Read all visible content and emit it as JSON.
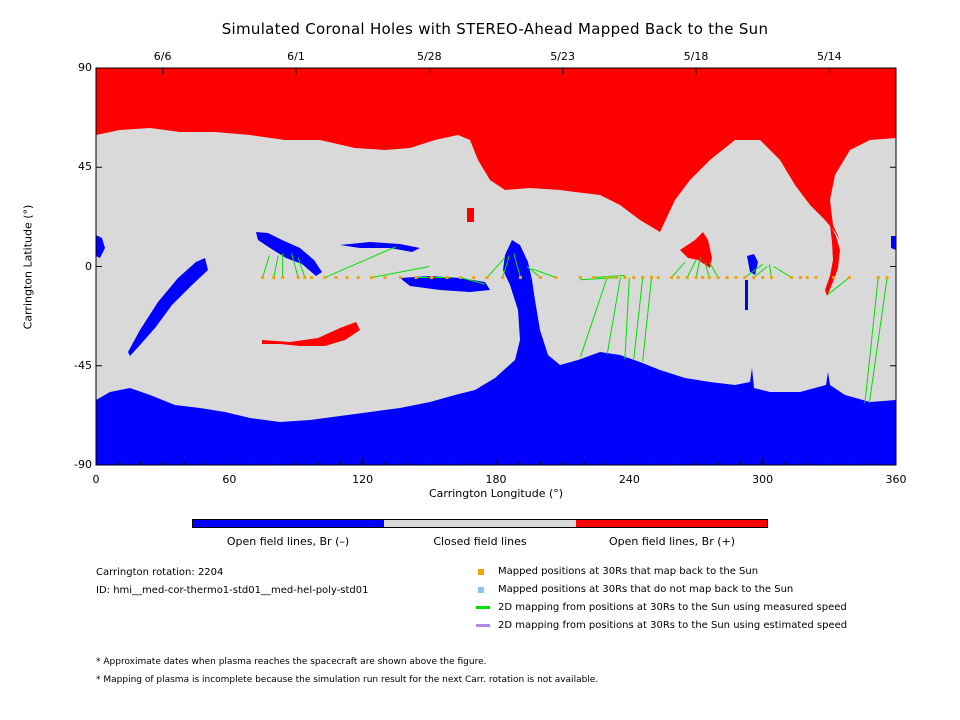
{
  "title": "Simulated Coronal Holes with STEREO-Ahead Mapped Back to the Sun",
  "chart_data": {
    "type": "map",
    "xlabel": "Carrington Longitude (°)",
    "ylabel": "Carrington Latitude (°)",
    "xlim": [
      0,
      360
    ],
    "ylim": [
      -90,
      90
    ],
    "x_ticks": [
      "0",
      "60",
      "120",
      "180",
      "240",
      "300",
      "360"
    ],
    "y_ticks": [
      "90",
      "45",
      "0",
      "-45",
      "-90"
    ],
    "top_dates": [
      {
        "label": "6/6",
        "lon": 30
      },
      {
        "label": "6/1",
        "lon": 90
      },
      {
        "label": "5/28",
        "lon": 150
      },
      {
        "label": "5/23",
        "lon": 210
      },
      {
        "label": "5/18",
        "lon": 270
      },
      {
        "label": "5/14",
        "lon": 330
      }
    ],
    "colors": {
      "open_negative": "#0000ff",
      "closed": "#d9d9d9",
      "open_positive": "#ff0000",
      "mapped_point": "#f0a400",
      "not_mapped_point": "#88c8f0",
      "measured_line": "#00e000",
      "estimated_line": "#b488e0"
    },
    "colorbar": [
      "Open field lines, Br (–)",
      "Closed field lines",
      "Open field lines, Br (+)"
    ],
    "mapped_points": [
      {
        "lon": 75,
        "lat": -5
      },
      {
        "lon": 80,
        "lat": -5
      },
      {
        "lon": 84,
        "lat": -5
      },
      {
        "lon": 91,
        "lat": -5
      },
      {
        "lon": 94,
        "lat": -5
      },
      {
        "lon": 97,
        "lat": -5
      },
      {
        "lon": 103,
        "lat": -5
      },
      {
        "lon": 108,
        "lat": -5
      },
      {
        "lon": 113,
        "lat": -5
      },
      {
        "lon": 118,
        "lat": -5
      },
      {
        "lon": 124,
        "lat": -5
      },
      {
        "lon": 130,
        "lat": -5
      },
      {
        "lon": 137,
        "lat": -5
      },
      {
        "lon": 144,
        "lat": -5
      },
      {
        "lon": 151,
        "lat": -5
      },
      {
        "lon": 158,
        "lat": -5
      },
      {
        "lon": 164,
        "lat": -5
      },
      {
        "lon": 170,
        "lat": -5
      },
      {
        "lon": 176,
        "lat": -5
      },
      {
        "lon": 183,
        "lat": -5
      },
      {
        "lon": 191,
        "lat": -5
      },
      {
        "lon": 200,
        "lat": -5
      },
      {
        "lon": 207,
        "lat": -5
      },
      {
        "lon": 218,
        "lat": -5
      },
      {
        "lon": 224,
        "lat": -5
      },
      {
        "lon": 230,
        "lat": -5
      },
      {
        "lon": 234,
        "lat": -5
      },
      {
        "lon": 238,
        "lat": -5
      },
      {
        "lon": 242,
        "lat": -5
      },
      {
        "lon": 246,
        "lat": -5
      },
      {
        "lon": 250,
        "lat": -5
      },
      {
        "lon": 253,
        "lat": -5
      },
      {
        "lon": 259,
        "lat": -5
      },
      {
        "lon": 262,
        "lat": -5
      },
      {
        "lon": 266,
        "lat": -5
      },
      {
        "lon": 270,
        "lat": -5
      },
      {
        "lon": 273,
        "lat": -5
      },
      {
        "lon": 276,
        "lat": -5
      },
      {
        "lon": 280,
        "lat": -5
      },
      {
        "lon": 284,
        "lat": -5
      },
      {
        "lon": 288,
        "lat": -5
      },
      {
        "lon": 292,
        "lat": -5
      },
      {
        "lon": 296,
        "lat": -5
      },
      {
        "lon": 300,
        "lat": -5
      },
      {
        "lon": 304,
        "lat": -5
      },
      {
        "lon": 313,
        "lat": -5
      },
      {
        "lon": 317,
        "lat": -5
      },
      {
        "lon": 320,
        "lat": -5
      },
      {
        "lon": 324,
        "lat": -5
      },
      {
        "lon": 332,
        "lat": -5
      },
      {
        "lon": 339,
        "lat": -5
      },
      {
        "lon": 352,
        "lat": -5
      },
      {
        "lon": 356,
        "lat": -5
      }
    ],
    "measured_lines": [
      [
        75,
        -5,
        78,
        5
      ],
      [
        80,
        -5,
        82,
        5
      ],
      [
        84,
        -5,
        84,
        6
      ],
      [
        91,
        -5,
        88,
        6
      ],
      [
        94,
        -5,
        91,
        4
      ],
      [
        103,
        -5,
        135,
        9
      ],
      [
        124,
        -5,
        150,
        0
      ],
      [
        144,
        -5,
        160,
        -5
      ],
      [
        164,
        -5,
        175,
        -8
      ],
      [
        176,
        -5,
        184,
        4
      ],
      [
        183,
        -5,
        186,
        5
      ],
      [
        191,
        -5,
        188,
        6
      ],
      [
        200,
        -5,
        194,
        0
      ],
      [
        207,
        -5,
        196,
        -1
      ],
      [
        218,
        -6,
        235,
        -5
      ],
      [
        224,
        -5,
        238,
        -4
      ],
      [
        218,
        -41,
        230,
        -5
      ],
      [
        230,
        -40,
        236,
        -5
      ],
      [
        238,
        -42,
        240,
        -5
      ],
      [
        242,
        -42,
        246,
        -5
      ],
      [
        246,
        -43,
        250,
        -5
      ],
      [
        259,
        -5,
        265,
        2
      ],
      [
        266,
        -5,
        270,
        3
      ],
      [
        270,
        -5,
        272,
        4
      ],
      [
        276,
        -5,
        274,
        2
      ],
      [
        280,
        -5,
        276,
        2
      ],
      [
        292,
        -5,
        300,
        1
      ],
      [
        296,
        -5,
        302,
        0
      ],
      [
        304,
        -5,
        303,
        1
      ],
      [
        313,
        -5,
        305,
        0
      ],
      [
        339,
        -5,
        329,
        -13
      ],
      [
        352,
        -5,
        346,
        -62
      ],
      [
        356,
        -5,
        348,
        -62
      ]
    ]
  },
  "info": {
    "rotation": "Carrington rotation: 2204",
    "id": "ID: hmi__med-cor-thermo1-std01__med-hel-poly-std01"
  },
  "legend": [
    "Mapped positions at 30Rs that map back to the Sun",
    "Mapped positions at 30Rs that do not map back to the Sun",
    "2D mapping from positions at 30Rs to the Sun using measured speed",
    "2D mapping from positions at 30Rs to the Sun using estimated speed"
  ],
  "notes": [
    "* Approximate dates when plasma reaches the spacecraft are shown above the figure.",
    "* Mapping of plasma is incomplete because the simulation run result for the next Carr. rotation is not available."
  ]
}
